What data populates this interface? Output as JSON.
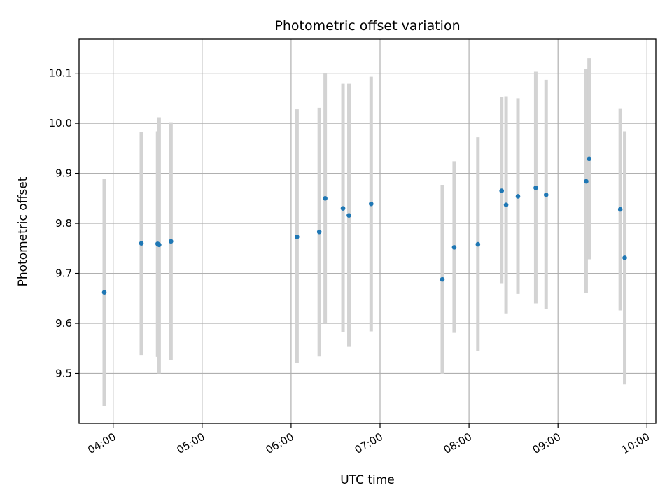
{
  "chart_data": {
    "type": "scatter",
    "title": "Photometric offset variation",
    "xlabel": "UTC time",
    "ylabel": "Photometric offset",
    "x_unit": "UTC hour",
    "xlim": [
      "03:37",
      "10:06"
    ],
    "ylim": [
      9.4,
      10.168
    ],
    "xticks": [
      "04:00",
      "05:00",
      "06:00",
      "07:00",
      "08:00",
      "09:00",
      "10:00"
    ],
    "yticks": [
      9.5,
      9.6,
      9.7,
      9.8,
      9.9,
      10.0,
      10.1
    ],
    "ytick_labels": [
      "9.5",
      "9.6",
      "9.7",
      "9.8",
      "9.9",
      "10.0",
      "10.1"
    ],
    "grid": true,
    "marker_color": "#1f77b4",
    "errorbar_color": "#d3d3d3",
    "points": [
      {
        "t": "03:54",
        "y": 9.662,
        "lo": 9.435,
        "hi": 9.889
      },
      {
        "t": "04:19",
        "y": 9.76,
        "lo": 9.537,
        "hi": 9.982
      },
      {
        "t": "04:30",
        "y": 9.759,
        "lo": 9.533,
        "hi": 9.984
      },
      {
        "t": "04:31",
        "y": 9.757,
        "lo": 9.5,
        "hi": 10.012
      },
      {
        "t": "04:39",
        "y": 9.764,
        "lo": 9.526,
        "hi": 10.002
      },
      {
        "t": "06:04",
        "y": 9.773,
        "lo": 9.521,
        "hi": 10.028
      },
      {
        "t": "06:19",
        "y": 9.783,
        "lo": 9.534,
        "hi": 10.031
      },
      {
        "t": "06:23",
        "y": 9.85,
        "lo": 9.6,
        "hi": 10.1
      },
      {
        "t": "06:35",
        "y": 9.83,
        "lo": 9.582,
        "hi": 10.079
      },
      {
        "t": "06:39",
        "y": 9.816,
        "lo": 9.553,
        "hi": 10.079
      },
      {
        "t": "06:54",
        "y": 9.839,
        "lo": 9.584,
        "hi": 10.093
      },
      {
        "t": "07:42",
        "y": 9.688,
        "lo": 9.498,
        "hi": 9.877
      },
      {
        "t": "07:50",
        "y": 9.752,
        "lo": 9.581,
        "hi": 9.924
      },
      {
        "t": "08:06",
        "y": 9.758,
        "lo": 9.545,
        "hi": 9.972
      },
      {
        "t": "08:22",
        "y": 9.865,
        "lo": 9.679,
        "hi": 10.052
      },
      {
        "t": "08:25",
        "y": 9.837,
        "lo": 9.62,
        "hi": 10.054
      },
      {
        "t": "08:33",
        "y": 9.854,
        "lo": 9.659,
        "hi": 10.05
      },
      {
        "t": "08:45",
        "y": 9.871,
        "lo": 9.64,
        "hi": 10.103
      },
      {
        "t": "08:52",
        "y": 9.857,
        "lo": 9.628,
        "hi": 10.087
      },
      {
        "t": "09:19",
        "y": 9.884,
        "lo": 9.661,
        "hi": 10.108
      },
      {
        "t": "09:21",
        "y": 9.929,
        "lo": 9.728,
        "hi": 10.13
      },
      {
        "t": "09:42",
        "y": 9.828,
        "lo": 9.626,
        "hi": 10.03
      },
      {
        "t": "09:45",
        "y": 9.731,
        "lo": 9.478,
        "hi": 9.984
      }
    ]
  }
}
